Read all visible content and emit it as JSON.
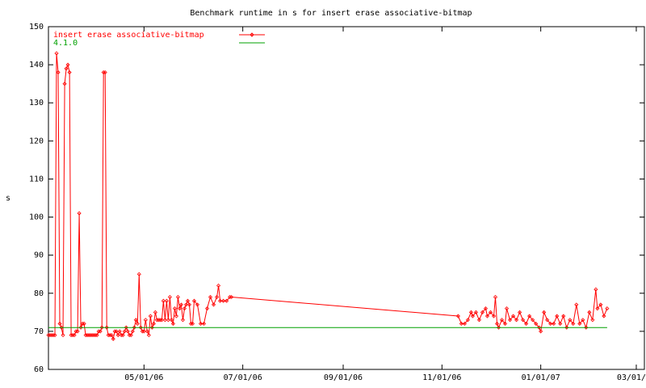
{
  "chart_data": {
    "type": "line",
    "title": "Benchmark runtime in s for insert erase associative-bitmap",
    "ylabel": "s",
    "xlim": [
      "2006-03-03",
      "2007-03-06"
    ],
    "xticks": [
      {
        "value": "2006-05-01",
        "label": "05/01/06"
      },
      {
        "value": "2006-07-01",
        "label": "07/01/06"
      },
      {
        "value": "2006-09-01",
        "label": "09/01/06"
      },
      {
        "value": "2006-11-01",
        "label": "11/01/06"
      },
      {
        "value": "2007-01-01",
        "label": "01/01/07"
      },
      {
        "value": "2007-03-01",
        "label": "03/01/07"
      }
    ],
    "ylim": [
      60,
      150
    ],
    "yticks": [
      60,
      70,
      80,
      90,
      100,
      110,
      120,
      130,
      140,
      150
    ],
    "legend": "top-left",
    "series": [
      {
        "name": "insert erase associative-bitmap",
        "color": "#ff0000",
        "markers": true,
        "x": [
          "2006-03-03",
          "2006-03-04",
          "2006-03-05",
          "2006-03-06",
          "2006-03-07",
          "2006-03-08",
          "2006-03-09",
          "2006-03-10",
          "2006-03-11",
          "2006-03-12",
          "2006-03-13",
          "2006-03-14",
          "2006-03-15",
          "2006-03-16",
          "2006-03-17",
          "2006-03-18",
          "2006-03-19",
          "2006-03-20",
          "2006-03-21",
          "2006-03-22",
          "2006-03-23",
          "2006-03-24",
          "2006-03-25",
          "2006-03-26",
          "2006-03-27",
          "2006-03-28",
          "2006-03-29",
          "2006-03-30",
          "2006-03-31",
          "2006-04-01",
          "2006-04-02",
          "2006-04-03",
          "2006-04-04",
          "2006-04-05",
          "2006-04-06",
          "2006-04-07",
          "2006-04-08",
          "2006-04-09",
          "2006-04-10",
          "2006-04-11",
          "2006-04-12",
          "2006-04-13",
          "2006-04-14",
          "2006-04-15",
          "2006-04-16",
          "2006-04-17",
          "2006-04-18",
          "2006-04-19",
          "2006-04-20",
          "2006-04-21",
          "2006-04-22",
          "2006-04-23",
          "2006-04-24",
          "2006-04-25",
          "2006-04-26",
          "2006-04-27",
          "2006-04-28",
          "2006-04-29",
          "2006-04-30",
          "2006-05-01",
          "2006-05-02",
          "2006-05-03",
          "2006-05-04",
          "2006-05-05",
          "2006-05-06",
          "2006-05-07",
          "2006-05-08",
          "2006-05-09",
          "2006-05-10",
          "2006-05-11",
          "2006-05-12",
          "2006-05-13",
          "2006-05-14",
          "2006-05-15",
          "2006-05-16",
          "2006-05-17",
          "2006-05-18",
          "2006-05-19",
          "2006-05-20",
          "2006-05-21",
          "2006-05-22",
          "2006-05-23",
          "2006-05-24",
          "2006-05-25",
          "2006-05-26",
          "2006-05-27",
          "2006-05-28",
          "2006-05-29",
          "2006-05-30",
          "2006-05-31",
          "2006-06-01",
          "2006-06-03",
          "2006-06-05",
          "2006-06-07",
          "2006-06-09",
          "2006-06-11",
          "2006-06-13",
          "2006-06-15",
          "2006-06-16",
          "2006-06-17",
          "2006-06-19",
          "2006-06-21",
          "2006-06-23",
          "2006-06-24",
          "2006-11-11",
          "2006-11-13",
          "2006-11-15",
          "2006-11-17",
          "2006-11-19",
          "2006-11-20",
          "2006-11-22",
          "2006-11-24",
          "2006-11-26",
          "2006-11-28",
          "2006-11-29",
          "2006-12-01",
          "2006-12-03",
          "2006-12-04",
          "2006-12-05",
          "2006-12-06",
          "2006-12-08",
          "2006-12-10",
          "2006-12-11",
          "2006-12-13",
          "2006-12-15",
          "2006-12-17",
          "2006-12-19",
          "2006-12-21",
          "2006-12-23",
          "2006-12-25",
          "2006-12-27",
          "2006-12-29",
          "2006-12-31",
          "2007-01-01",
          "2007-01-03",
          "2007-01-05",
          "2007-01-07",
          "2007-01-09",
          "2007-01-11",
          "2007-01-13",
          "2007-01-15",
          "2007-01-17",
          "2007-01-19",
          "2007-01-21",
          "2007-01-23",
          "2007-01-25",
          "2007-01-27",
          "2007-01-29",
          "2007-01-31",
          "2007-02-02",
          "2007-02-04",
          "2007-02-05",
          "2007-02-07",
          "2007-02-09",
          "2007-02-11"
        ],
        "values": [
          69,
          69,
          69,
          69,
          69,
          143,
          138,
          72,
          71,
          69,
          135,
          139,
          140,
          138,
          69,
          69,
          69,
          70,
          70,
          101,
          71,
          72,
          72,
          69,
          69,
          69,
          69,
          69,
          69,
          69,
          69,
          70,
          70,
          71,
          138,
          138,
          71,
          69,
          69,
          69,
          68,
          70,
          70,
          69,
          70,
          69,
          69,
          70,
          71,
          70,
          69,
          69,
          70,
          71,
          73,
          72,
          85,
          71,
          70,
          70,
          73,
          70,
          69,
          74,
          71,
          72,
          75,
          73,
          73,
          73,
          73,
          78,
          73,
          78,
          73,
          79,
          73,
          72,
          76,
          74,
          79,
          76,
          77,
          73,
          76,
          77,
          78,
          77,
          72,
          72,
          78,
          77,
          72,
          72,
          76,
          79,
          77,
          79,
          82,
          78,
          78,
          78,
          79,
          79,
          74,
          72,
          72,
          73,
          75,
          74,
          75,
          73,
          75,
          76,
          74,
          75,
          74,
          79,
          72,
          71,
          73,
          72,
          76,
          73,
          74,
          73,
          75,
          73,
          72,
          74,
          73,
          72,
          71,
          70,
          75,
          73,
          72,
          72,
          74,
          72,
          74,
          71,
          73,
          72,
          77,
          72,
          73,
          71,
          75,
          73,
          81,
          76,
          77,
          74,
          76
        ]
      },
      {
        "name": "4.1.0",
        "color": "#00a000",
        "markers": false,
        "x": [
          "2006-03-03",
          "2007-02-11"
        ],
        "values": [
          71,
          71
        ]
      }
    ]
  }
}
